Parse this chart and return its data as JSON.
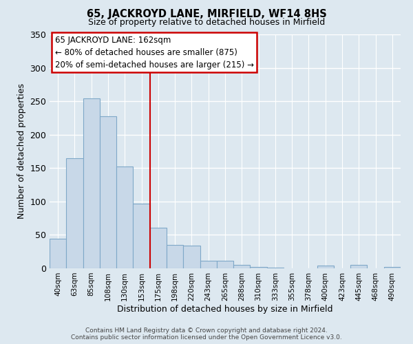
{
  "title": "65, JACKROYD LANE, MIRFIELD, WF14 8HS",
  "subtitle": "Size of property relative to detached houses in Mirfield",
  "xlabel": "Distribution of detached houses by size in Mirfield",
  "ylabel": "Number of detached properties",
  "bar_labels": [
    "40sqm",
    "63sqm",
    "85sqm",
    "108sqm",
    "130sqm",
    "153sqm",
    "175sqm",
    "198sqm",
    "220sqm",
    "243sqm",
    "265sqm",
    "288sqm",
    "310sqm",
    "333sqm",
    "355sqm",
    "378sqm",
    "400sqm",
    "423sqm",
    "445sqm",
    "468sqm",
    "490sqm"
  ],
  "bar_values": [
    44,
    165,
    254,
    228,
    152,
    97,
    61,
    35,
    34,
    11,
    11,
    5,
    2,
    1,
    0,
    0,
    4,
    0,
    5,
    0,
    2
  ],
  "bar_color": "#c8d8e8",
  "bar_edge_color": "#7fa8c8",
  "vline_x": 5.5,
  "vline_color": "#cc0000",
  "annotation_title": "65 JACKROYD LANE: 162sqm",
  "annotation_line1": "← 80% of detached houses are smaller (875)",
  "annotation_line2": "20% of semi-detached houses are larger (215) →",
  "annotation_box_color": "#ffffff",
  "annotation_box_edge": "#cc0000",
  "ylim": [
    0,
    350
  ],
  "yticks": [
    0,
    50,
    100,
    150,
    200,
    250,
    300,
    350
  ],
  "footer1": "Contains HM Land Registry data © Crown copyright and database right 2024.",
  "footer2": "Contains public sector information licensed under the Open Government Licence v3.0.",
  "bg_color": "#dde8f0"
}
